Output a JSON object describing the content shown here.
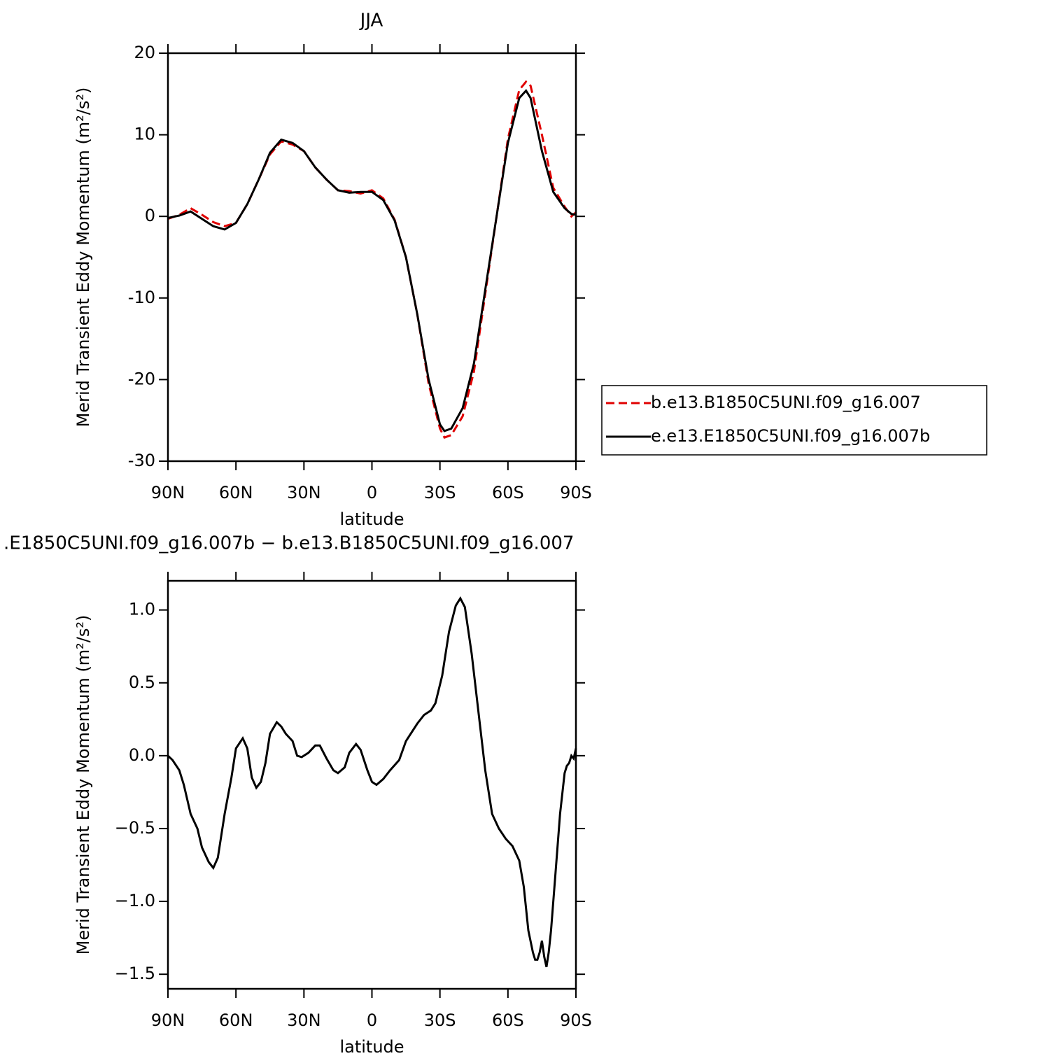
{
  "chart_data": [
    {
      "type": "line",
      "title": "JJA",
      "xlabel": "latitude",
      "ylabel": "Merid Transient Eddy Momentum (m²/s²)",
      "x": [
        90,
        85,
        80,
        75,
        70,
        65,
        60,
        55,
        50,
        45,
        40,
        35,
        30,
        25,
        20,
        15,
        10,
        5,
        0,
        -5,
        -10,
        -15,
        -20,
        -25,
        -30,
        -32,
        -35,
        -40,
        -45,
        -50,
        -55,
        -60,
        -65,
        -68,
        -70,
        -75,
        -80,
        -85,
        -88,
        -90
      ],
      "series": [
        {
          "name": "b.e13.B1850C5UNI.f09_g16.007",
          "color": "#e00000",
          "dash": true,
          "values": [
            -0.3,
            0.2,
            1.0,
            0.2,
            -0.7,
            -1.2,
            -0.8,
            1.5,
            4.5,
            7.6,
            9.2,
            8.8,
            8.0,
            6.0,
            4.5,
            3.2,
            3.1,
            2.8,
            3.2,
            2.2,
            -0.4,
            -5,
            -12,
            -20.5,
            -26,
            -27.1,
            -26.8,
            -24.5,
            -19,
            -9.5,
            0,
            9.5,
            15.5,
            16.5,
            16,
            10,
            3.5,
            1.2,
            0,
            0.5
          ]
        },
        {
          "name": "e.e13.E1850C5UNI.f09_g16.007b",
          "color": "#000000",
          "dash": false,
          "values": [
            -0.2,
            0.1,
            0.6,
            -0.3,
            -1.2,
            -1.6,
            -0.8,
            1.5,
            4.5,
            7.8,
            9.4,
            9.0,
            8.0,
            6.0,
            4.5,
            3.2,
            2.9,
            3.0,
            3.0,
            2.0,
            -0.5,
            -5,
            -12,
            -20,
            -25.5,
            -26.3,
            -26,
            -23.5,
            -18,
            -9,
            0,
            9,
            14.5,
            15.4,
            14.5,
            8,
            3,
            1,
            0.3,
            0.2
          ]
        }
      ],
      "xlim": [
        90,
        -90
      ],
      "xticks": [
        {
          "value": 90,
          "label": "90N"
        },
        {
          "value": 60,
          "label": "60N"
        },
        {
          "value": 30,
          "label": "30N"
        },
        0,
        {
          "value": -30,
          "label": "30S"
        },
        {
          "value": -60,
          "label": "60S"
        },
        {
          "value": -90,
          "label": "90S"
        }
      ],
      "ylim": [
        -30,
        20
      ],
      "yticks": [
        -30,
        -20,
        -10,
        0,
        10,
        20
      ],
      "legend": "right"
    },
    {
      "type": "line",
      "title": ".E1850C5UNI.f09_g16.007b − b.e13.B1850C5UNI.f09_g16.007",
      "xlabel": "latitude",
      "ylabel": "Merid Transient Eddy Momentum (m²/s²)",
      "x": [
        90,
        88,
        85,
        83,
        80,
        77,
        75,
        72,
        70,
        68,
        65,
        62,
        60,
        57,
        55,
        53,
        51,
        49,
        47,
        45,
        42,
        40,
        38,
        35,
        33,
        31,
        28,
        25,
        23,
        20,
        17,
        15,
        12,
        10,
        7,
        5,
        2,
        0,
        -2,
        -5,
        -8,
        -12,
        -15,
        -20,
        -23,
        -26,
        -28,
        -31,
        -34,
        -37,
        -39,
        -41,
        -44,
        -47,
        -50,
        -53,
        -56,
        -59,
        -62,
        -65,
        -67,
        -69,
        -71,
        -72,
        -73,
        -74,
        -75,
        -76,
        -77,
        -78,
        -79,
        -81,
        -83,
        -85,
        -86,
        -87,
        -88,
        -89,
        -90
      ],
      "series": [
        {
          "color": "#000000",
          "dash": false,
          "values": [
            0.0,
            -0.03,
            -0.1,
            -0.2,
            -0.4,
            -0.5,
            -0.63,
            -0.73,
            -0.77,
            -0.7,
            -0.4,
            -0.15,
            0.05,
            0.12,
            0.05,
            -0.15,
            -0.22,
            -0.18,
            -0.05,
            0.15,
            0.23,
            0.2,
            0.15,
            0.1,
            0.0,
            -0.01,
            0.02,
            0.07,
            0.07,
            -0.02,
            -0.1,
            -0.12,
            -0.08,
            0.02,
            0.08,
            0.04,
            -0.1,
            -0.18,
            -0.2,
            -0.16,
            -0.1,
            -0.03,
            0.1,
            0.22,
            0.28,
            0.31,
            0.36,
            0.55,
            0.85,
            1.03,
            1.08,
            1.02,
            0.7,
            0.3,
            -0.1,
            -0.4,
            -0.5,
            -0.57,
            -0.62,
            -0.72,
            -0.9,
            -1.2,
            -1.35,
            -1.4,
            -1.4,
            -1.35,
            -1.27,
            -1.38,
            -1.45,
            -1.35,
            -1.2,
            -0.8,
            -0.4,
            -0.12,
            -0.07,
            -0.05,
            0.0,
            -0.02,
            0.05
          ]
        }
      ],
      "xlim": [
        90,
        -90
      ],
      "xticks": [
        {
          "value": 90,
          "label": "90N"
        },
        {
          "value": 60,
          "label": "60N"
        },
        {
          "value": 30,
          "label": "30N"
        },
        0,
        {
          "value": -30,
          "label": "30S"
        },
        {
          "value": -60,
          "label": "60S"
        },
        {
          "value": -90,
          "label": "90S"
        }
      ],
      "ylim": [
        -1.6,
        1.2
      ],
      "yticks": [
        {
          "value": -1.5,
          "label": "−1.5"
        },
        {
          "value": -1.0,
          "label": "−1.0"
        },
        {
          "value": -0.5,
          "label": "−0.5"
        },
        {
          "value": 0,
          "label": "0.0"
        },
        {
          "value": 0.5,
          "label": "0.5"
        },
        {
          "value": 1.0,
          "label": "1.0"
        }
      ]
    }
  ]
}
